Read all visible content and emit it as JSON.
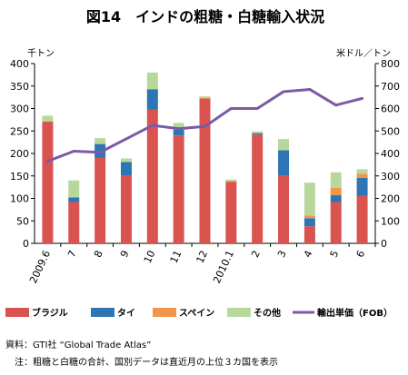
{
  "chart_data": {
    "type": "bar",
    "title": "図14　インドの粗糖・白糖輸入状況",
    "left_unit": "千トン",
    "right_unit": "米ドル／トン",
    "categories": [
      "2009.6",
      "7",
      "8",
      "9",
      "10",
      "11",
      "12",
      "2010.1",
      "2",
      "3",
      "4",
      "5",
      "6"
    ],
    "ylim_left": [
      0,
      400
    ],
    "left_ticks": [
      "0",
      "50",
      "100",
      "150",
      "200",
      "250",
      "300",
      "350",
      "400"
    ],
    "ylim_right": [
      0,
      800
    ],
    "right_ticks": [
      "0",
      "100",
      "200",
      "300",
      "400",
      "500",
      "600",
      "700",
      "800"
    ],
    "series": [
      {
        "name": "ブラジル",
        "type": "bar",
        "color": "#d9534f",
        "values": [
          271,
          92,
          190,
          150,
          298,
          240,
          322,
          137,
          242,
          150,
          38,
          92,
          106
        ]
      },
      {
        "name": "タイ",
        "type": "bar",
        "color": "#2e75b6",
        "values": [
          0,
          10,
          31,
          31,
          45,
          13,
          0,
          0,
          3,
          57,
          18,
          15,
          40
        ]
      },
      {
        "name": "スペイン",
        "type": "bar",
        "color": "#f0954a",
        "values": [
          0,
          0,
          0,
          0,
          0,
          0,
          2,
          2,
          1,
          0,
          6,
          17,
          9
        ]
      },
      {
        "name": "その他",
        "type": "bar",
        "color": "#b8d89b",
        "values": [
          13,
          38,
          13,
          8,
          37,
          15,
          3,
          3,
          3,
          25,
          73,
          34,
          10
        ]
      },
      {
        "name": "輸出単価（FOB）",
        "type": "line",
        "axis": "right",
        "color": "#7b5aa6",
        "values": [
          365,
          410,
          405,
          465,
          525,
          510,
          520,
          600,
          600,
          675,
          685,
          615,
          645
        ]
      }
    ],
    "grid": false,
    "legend_position": "bottom"
  },
  "notes": {
    "source": "資料：GTI社 “Global Trade Atlas”",
    "note": "注：粗糖と白糖の合計、国別データは直近月の上位３カ国を表示"
  }
}
